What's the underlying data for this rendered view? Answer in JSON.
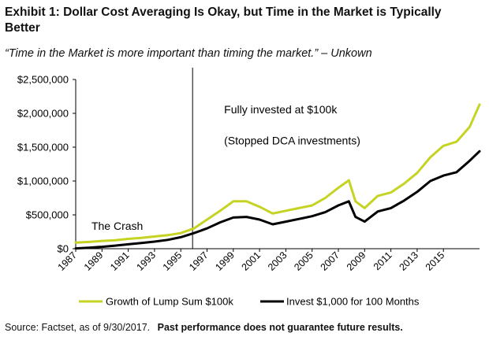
{
  "header": {
    "title": "Exhibit 1: Dollar Cost Averaging Is Okay, but Time in the Market is Typically Better",
    "quote": "“Time in the Market is more important than timing the market.” – Unkown"
  },
  "footer": {
    "source": "Source: Factset, as of 9/30/2017.",
    "disclaimer": "Past performance does not guarantee future results."
  },
  "chart_data": {
    "type": "line",
    "title": "",
    "xlabel": "",
    "ylabel": "",
    "x_ticks": [
      "1987",
      "1989",
      "1991",
      "1993",
      "1995",
      "1997",
      "1999",
      "2001",
      "2003",
      "2005",
      "2007",
      "2009",
      "2011",
      "2013",
      "2015"
    ],
    "y_ticks": [
      "$0",
      "$500,000",
      "$1,000,000",
      "$1,500,000",
      "$2,000,000",
      "$2,500,000"
    ],
    "xlim": [
      1987,
      2017.75
    ],
    "ylim": [
      0,
      2500000
    ],
    "grid": false,
    "legend_position": "bottom",
    "colors": {
      "lump": "#c5d322",
      "dca": "#000000"
    },
    "annotations": [
      {
        "text": "The Crash",
        "x": 1988.2,
        "y": 280000
      },
      {
        "text": "Fully invested at $100k",
        "x": 1998.3,
        "y": 2000000
      },
      {
        "text": "(Stopped DCA investments)",
        "x": 1998.3,
        "y": 1540000
      }
    ],
    "vline_x": 1995.9,
    "series": [
      {
        "name": "Growth of Lump Sum $100k",
        "x": [
          1987,
          1988,
          1989,
          1990,
          1991,
          1992,
          1993,
          1994,
          1995,
          1996,
          1997,
          1998,
          1999,
          2000,
          2001,
          2002,
          2003,
          2004,
          2005,
          2006,
          2007,
          2007.8,
          2008.3,
          2009,
          2010,
          2011,
          2012,
          2013,
          2014,
          2015,
          2016,
          2017,
          2017.75
        ],
        "values": [
          90000,
          100000,
          115000,
          125000,
          145000,
          160000,
          180000,
          200000,
          230000,
          300000,
          430000,
          560000,
          700000,
          700000,
          620000,
          520000,
          560000,
          600000,
          640000,
          750000,
          900000,
          1010000,
          700000,
          600000,
          780000,
          830000,
          960000,
          1120000,
          1350000,
          1520000,
          1580000,
          1800000,
          2130000
        ]
      },
      {
        "name": "Invest $1,000 for 100 Months",
        "x": [
          1987,
          1988,
          1989,
          1990,
          1991,
          1992,
          1993,
          1994,
          1995,
          1996,
          1997,
          1998,
          1999,
          2000,
          2001,
          2002,
          2003,
          2004,
          2005,
          2006,
          2007,
          2007.8,
          2008.3,
          2009,
          2010,
          2011,
          2012,
          2013,
          2014,
          2015,
          2016,
          2017,
          2017.75
        ],
        "values": [
          5000,
          15000,
          28000,
          45000,
          65000,
          85000,
          105000,
          130000,
          170000,
          230000,
          300000,
          390000,
          460000,
          470000,
          430000,
          360000,
          400000,
          440000,
          480000,
          540000,
          640000,
          700000,
          470000,
          400000,
          550000,
          600000,
          710000,
          840000,
          1000000,
          1080000,
          1130000,
          1300000,
          1440000
        ]
      }
    ]
  }
}
